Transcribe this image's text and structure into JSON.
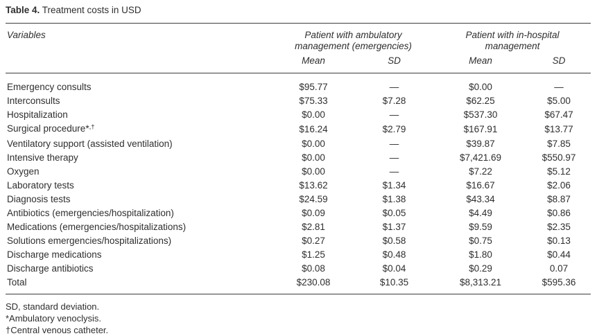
{
  "caption": {
    "label": "Table 4.",
    "text": " Treatment costs in USD"
  },
  "table": {
    "header": {
      "variables": "Variables",
      "group_ambulatory": "Patient with ambulatory management (emergencies)",
      "group_inhospital": "Patient with in-hospital management",
      "subheaders": [
        "Mean",
        "SD",
        "Mean",
        "SD"
      ]
    },
    "rows": [
      {
        "label": "Emergency consults",
        "amb_mean": "$95.77",
        "amb_sd": "—",
        "hosp_mean": "$0.00",
        "hosp_sd": "—"
      },
      {
        "label": "Interconsults",
        "amb_mean": "$75.33",
        "amb_sd": "$7.28",
        "hosp_mean": "$62.25",
        "hosp_sd": "$5.00"
      },
      {
        "label": "Hospitalization",
        "amb_mean": "$0.00",
        "amb_sd": "—",
        "hosp_mean": "$537.30",
        "hosp_sd": "$67.47"
      },
      {
        "label": "Surgical procedure*",
        "label_sup": ",†",
        "amb_mean": "$16.24",
        "amb_sd": "$2.79",
        "hosp_mean": "$167.91",
        "hosp_sd": "$13.77"
      },
      {
        "label": "Ventilatory support (assisted ventilation)",
        "amb_mean": "$0.00",
        "amb_sd": "—",
        "hosp_mean": "$39.87",
        "hosp_sd": "$7.85"
      },
      {
        "label": "Intensive therapy",
        "amb_mean": "$0.00",
        "amb_sd": "—",
        "hosp_mean": "$7,421.69",
        "hosp_sd": "$550.97"
      },
      {
        "label": "Oxygen",
        "amb_mean": "$0.00",
        "amb_sd": "—",
        "hosp_mean": "$7.22",
        "hosp_sd": "$5.12"
      },
      {
        "label": "Laboratory tests",
        "amb_mean": "$13.62",
        "amb_sd": "$1.34",
        "hosp_mean": "$16.67",
        "hosp_sd": "$2.06"
      },
      {
        "label": "Diagnosis tests",
        "amb_mean": "$24.59",
        "amb_sd": "$1.38",
        "hosp_mean": "$43.34",
        "hosp_sd": "$8.87"
      },
      {
        "label": "Antibiotics (emergencies/hospitalization)",
        "amb_mean": "$0.09",
        "amb_sd": "$0.05",
        "hosp_mean": "$4.49",
        "hosp_sd": "$0.86"
      },
      {
        "label": "Medications (emergencies/hospitalizations)",
        "amb_mean": "$2.81",
        "amb_sd": "$1.37",
        "hosp_mean": "$9.59",
        "hosp_sd": "$2.35"
      },
      {
        "label": "Solutions emergencies/hospitalizations)",
        "amb_mean": "$0.27",
        "amb_sd": "$0.58",
        "hosp_mean": "$0.75",
        "hosp_sd": "$0.13"
      },
      {
        "label": "Discharge medications",
        "amb_mean": "$1.25",
        "amb_sd": "$0.48",
        "hosp_mean": "$1.80",
        "hosp_sd": "$0.44"
      },
      {
        "label": "Discharge antibiotics",
        "amb_mean": "$0.08",
        "amb_sd": "$0.04",
        "hosp_mean": "$0.29",
        "hosp_sd": "0.07"
      },
      {
        "label": "Total",
        "amb_mean": "$230.08",
        "amb_sd": "$10.35",
        "hosp_mean": "$8,313.21",
        "hosp_sd": "$595.36"
      }
    ]
  },
  "footnotes": [
    "SD, standard deviation.",
    "*Ambulatory venoclysis.",
    "†Central venous catheter."
  ],
  "colors": {
    "text": "#2e2e2e",
    "rule": "#3c3c3c",
    "background": "#ffffff"
  }
}
